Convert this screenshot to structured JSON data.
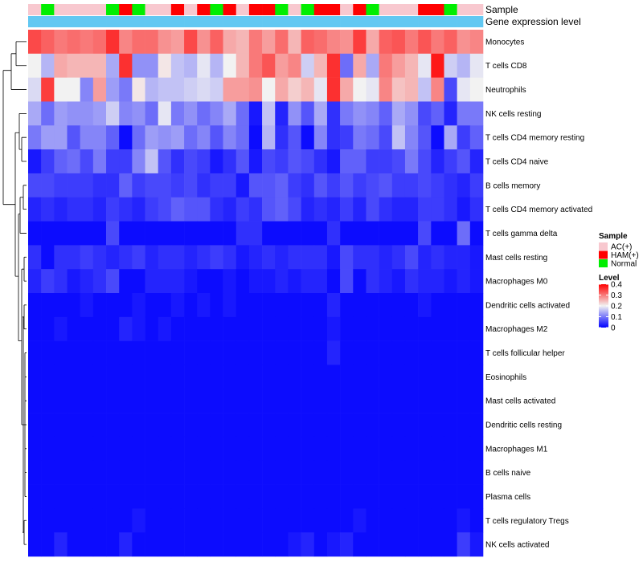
{
  "chart_data": {
    "type": "heatmap",
    "title": "",
    "annotation_labels": [
      "Sample",
      "Gene expression level"
    ],
    "rows": [
      "Monocytes",
      "T cells CD8",
      "Neutrophils",
      "NK cells resting",
      "T cells CD4 memory resting",
      "T cells CD4 naive",
      "B cells memory",
      "T cells CD4 memory activated",
      "T cells gamma delta",
      "Mast cells resting",
      "Macrophages M0",
      "Dendritic cells activated",
      "Macrophages M2",
      "T cells follicular helper",
      "Eosinophils",
      "Mast cells activated",
      "Dendritic cells resting",
      "Macrophages M1",
      "B cells naive",
      "Plasma cells",
      "T cells regulatory  Tregs",
      "NK cells activated"
    ],
    "sample_groups": [
      "A",
      "N",
      "A",
      "A",
      "A",
      "A",
      "N",
      "H",
      "N",
      "A",
      "A",
      "H",
      "A",
      "H",
      "N",
      "H",
      "A",
      "H",
      "H",
      "N",
      "A",
      "N",
      "H",
      "H",
      "A",
      "H",
      "N",
      "A",
      "A",
      "A",
      "H",
      "H",
      "N",
      "A",
      "A"
    ],
    "expression_level": [
      0.2,
      0.2,
      0.2,
      0.2,
      0.2,
      0.2,
      0.2,
      0.2,
      0.2,
      0.2,
      0.2,
      0.2,
      0.2,
      0.2,
      0.2,
      0.2,
      0.2,
      0.2,
      0.2,
      0.2,
      0.2,
      0.2,
      0.2,
      0.2,
      0.2,
      0.2,
      0.2,
      0.2,
      0.2,
      0.2,
      0.2,
      0.2,
      0.2,
      0.2,
      0.2
    ],
    "values": [
      [
        0.34,
        0.32,
        0.3,
        0.31,
        0.3,
        0.31,
        0.36,
        0.29,
        0.31,
        0.31,
        0.28,
        0.27,
        0.34,
        0.28,
        0.32,
        0.26,
        0.25,
        0.3,
        0.27,
        0.31,
        0.25,
        0.32,
        0.31,
        0.29,
        0.28,
        0.35,
        0.26,
        0.32,
        0.33,
        0.3,
        0.33,
        0.3,
        0.32,
        0.28,
        0.29
      ],
      [
        0.2,
        0.15,
        0.26,
        0.25,
        0.25,
        0.25,
        0.14,
        0.36,
        0.12,
        0.12,
        0.21,
        0.16,
        0.15,
        0.19,
        0.15,
        0.2,
        0.25,
        0.3,
        0.33,
        0.27,
        0.29,
        0.17,
        0.25,
        0.36,
        0.09,
        0.26,
        0.14,
        0.3,
        0.27,
        0.25,
        0.19,
        0.38,
        0.17,
        0.15,
        0.19
      ],
      [
        0.18,
        0.35,
        0.2,
        0.2,
        0.11,
        0.27,
        0.13,
        0.1,
        0.21,
        0.15,
        0.16,
        0.16,
        0.17,
        0.18,
        0.17,
        0.27,
        0.27,
        0.28,
        0.2,
        0.26,
        0.23,
        0.25,
        0.19,
        0.36,
        0.26,
        0.2,
        0.19,
        0.29,
        0.24,
        0.25,
        0.16,
        0.29,
        0.06,
        0.19,
        0.2
      ],
      [
        0.14,
        0.09,
        0.13,
        0.12,
        0.12,
        0.13,
        0.17,
        0.11,
        0.12,
        0.09,
        0.19,
        0.1,
        0.12,
        0.09,
        0.11,
        0.14,
        0.09,
        0.02,
        0.16,
        0.03,
        0.12,
        0.07,
        0.14,
        0.04,
        0.1,
        0.12,
        0.11,
        0.08,
        0.14,
        0.12,
        0.06,
        0.08,
        0.03,
        0.1,
        0.1
      ],
      [
        0.1,
        0.13,
        0.13,
        0.07,
        0.11,
        0.11,
        0.08,
        0.01,
        0.09,
        0.13,
        0.12,
        0.13,
        0.09,
        0.11,
        0.07,
        0.11,
        0.09,
        0.01,
        0.15,
        0.04,
        0.07,
        0.01,
        0.11,
        0.04,
        0.05,
        0.1,
        0.09,
        0.06,
        0.16,
        0.11,
        0.07,
        0.01,
        0.14,
        0.05,
        0.08
      ],
      [
        0.02,
        0.05,
        0.08,
        0.09,
        0.06,
        0.1,
        0.05,
        0.05,
        0.11,
        0.16,
        0.07,
        0.04,
        0.06,
        0.05,
        0.02,
        0.04,
        0.07,
        0.02,
        0.06,
        0.05,
        0.07,
        0.06,
        0.04,
        0.02,
        0.08,
        0.08,
        0.05,
        0.05,
        0.06,
        0.1,
        0.06,
        0.03,
        0.05,
        0.07,
        0.03
      ],
      [
        0.06,
        0.06,
        0.05,
        0.05,
        0.05,
        0.04,
        0.04,
        0.08,
        0.05,
        0.06,
        0.06,
        0.05,
        0.06,
        0.04,
        0.05,
        0.05,
        0.02,
        0.07,
        0.07,
        0.08,
        0.05,
        0.04,
        0.07,
        0.05,
        0.07,
        0.05,
        0.06,
        0.07,
        0.05,
        0.05,
        0.06,
        0.05,
        0.04,
        0.03,
        0.05
      ],
      [
        0.03,
        0.04,
        0.03,
        0.04,
        0.04,
        0.03,
        0.05,
        0.04,
        0.03,
        0.05,
        0.06,
        0.08,
        0.07,
        0.07,
        0.04,
        0.03,
        0.05,
        0.04,
        0.07,
        0.08,
        0.06,
        0.03,
        0.04,
        0.03,
        0.05,
        0.03,
        0.06,
        0.04,
        0.03,
        0.03,
        0.05,
        0.05,
        0.04,
        0.02,
        0.04
      ],
      [
        0.01,
        0.01,
        0.01,
        0.01,
        0.01,
        0.01,
        0.06,
        0.01,
        0.01,
        0.01,
        0.01,
        0.01,
        0.01,
        0.01,
        0.01,
        0.01,
        0.04,
        0.04,
        0.01,
        0.01,
        0.01,
        0.01,
        0.01,
        0.04,
        0.01,
        0.01,
        0.01,
        0.01,
        0.01,
        0.01,
        0.06,
        0.01,
        0.01,
        0.09,
        0.01
      ],
      [
        0.04,
        0.01,
        0.04,
        0.04,
        0.05,
        0.04,
        0.03,
        0.04,
        0.05,
        0.03,
        0.04,
        0.04,
        0.03,
        0.04,
        0.05,
        0.04,
        0.02,
        0.03,
        0.04,
        0.03,
        0.04,
        0.04,
        0.04,
        0.02,
        0.06,
        0.04,
        0.04,
        0.03,
        0.04,
        0.06,
        0.03,
        0.04,
        0.03,
        0.03,
        0.02
      ],
      [
        0.03,
        0.05,
        0.04,
        0.02,
        0.03,
        0.04,
        0.06,
        0.01,
        0.01,
        0.03,
        0.03,
        0.03,
        0.02,
        0.01,
        0.01,
        0.02,
        0.01,
        0.02,
        0.02,
        0.03,
        0.02,
        0.03,
        0.03,
        0.01,
        0.06,
        0.01,
        0.04,
        0.03,
        0.02,
        0.04,
        0.03,
        0.03,
        0.02,
        0.03,
        0.02
      ],
      [
        0.01,
        0.01,
        0.01,
        0.01,
        0.02,
        0.01,
        0.01,
        0.01,
        0.02,
        0.01,
        0.01,
        0.02,
        0.01,
        0.02,
        0.01,
        0.02,
        0.01,
        0.01,
        0.01,
        0.01,
        0.01,
        0.01,
        0.01,
        0.03,
        0.01,
        0.01,
        0.01,
        0.01,
        0.01,
        0.01,
        0.02,
        0.01,
        0.01,
        0.01,
        0.01
      ],
      [
        0.01,
        0.01,
        0.02,
        0.01,
        0.01,
        0.01,
        0.01,
        0.03,
        0.02,
        0.01,
        0.02,
        0.01,
        0.01,
        0.01,
        0.01,
        0.01,
        0.01,
        0.01,
        0.01,
        0.01,
        0.01,
        0.01,
        0.01,
        0.02,
        0.01,
        0.01,
        0.01,
        0.01,
        0.01,
        0.01,
        0.01,
        0.01,
        0.01,
        0.01,
        0.01
      ],
      [
        0.01,
        0.01,
        0.01,
        0.01,
        0.01,
        0.01,
        0.01,
        0.01,
        0.01,
        0.01,
        0.01,
        0.01,
        0.01,
        0.01,
        0.01,
        0.01,
        0.01,
        0.01,
        0.01,
        0.01,
        0.01,
        0.01,
        0.01,
        0.03,
        0.01,
        0.01,
        0.01,
        0.01,
        0.01,
        0.01,
        0.01,
        0.01,
        0.01,
        0.01,
        0.01
      ],
      [
        0.01,
        0.01,
        0.01,
        0.01,
        0.01,
        0.01,
        0.01,
        0.01,
        0.01,
        0.01,
        0.01,
        0.01,
        0.01,
        0.01,
        0.01,
        0.01,
        0.01,
        0.01,
        0.01,
        0.01,
        0.01,
        0.01,
        0.01,
        0.01,
        0.01,
        0.01,
        0.01,
        0.01,
        0.01,
        0.01,
        0.01,
        0.01,
        0.01,
        0.01,
        0.01
      ],
      [
        0.01,
        0.01,
        0.01,
        0.01,
        0.01,
        0.01,
        0.01,
        0.01,
        0.01,
        0.01,
        0.01,
        0.01,
        0.01,
        0.01,
        0.01,
        0.01,
        0.01,
        0.01,
        0.01,
        0.01,
        0.01,
        0.01,
        0.01,
        0.01,
        0.01,
        0.01,
        0.01,
        0.01,
        0.01,
        0.01,
        0.01,
        0.01,
        0.01,
        0.01,
        0.01
      ],
      [
        0.01,
        0.01,
        0.01,
        0.01,
        0.01,
        0.01,
        0.01,
        0.01,
        0.01,
        0.01,
        0.01,
        0.01,
        0.01,
        0.01,
        0.01,
        0.01,
        0.01,
        0.01,
        0.01,
        0.01,
        0.01,
        0.01,
        0.01,
        0.01,
        0.01,
        0.01,
        0.01,
        0.01,
        0.01,
        0.01,
        0.01,
        0.01,
        0.01,
        0.01,
        0.01
      ],
      [
        0.01,
        0.01,
        0.01,
        0.01,
        0.01,
        0.01,
        0.01,
        0.01,
        0.01,
        0.01,
        0.01,
        0.01,
        0.01,
        0.01,
        0.01,
        0.01,
        0.01,
        0.01,
        0.01,
        0.01,
        0.01,
        0.01,
        0.01,
        0.01,
        0.01,
        0.01,
        0.01,
        0.01,
        0.01,
        0.01,
        0.01,
        0.01,
        0.01,
        0.01,
        0.01
      ],
      [
        0.01,
        0.01,
        0.01,
        0.01,
        0.01,
        0.01,
        0.01,
        0.01,
        0.01,
        0.01,
        0.01,
        0.01,
        0.01,
        0.01,
        0.01,
        0.01,
        0.01,
        0.01,
        0.01,
        0.01,
        0.01,
        0.01,
        0.01,
        0.01,
        0.01,
        0.01,
        0.01,
        0.01,
        0.01,
        0.01,
        0.01,
        0.01,
        0.01,
        0.01,
        0.01
      ],
      [
        0.01,
        0.01,
        0.01,
        0.01,
        0.01,
        0.01,
        0.01,
        0.01,
        0.01,
        0.01,
        0.01,
        0.01,
        0.01,
        0.01,
        0.01,
        0.01,
        0.01,
        0.01,
        0.01,
        0.01,
        0.01,
        0.01,
        0.01,
        0.01,
        0.01,
        0.01,
        0.01,
        0.01,
        0.01,
        0.01,
        0.01,
        0.01,
        0.01,
        0.01,
        0.01
      ],
      [
        0.01,
        0.01,
        0.01,
        0.01,
        0.01,
        0.01,
        0.01,
        0.01,
        0.02,
        0.01,
        0.01,
        0.01,
        0.01,
        0.01,
        0.01,
        0.01,
        0.01,
        0.01,
        0.01,
        0.01,
        0.01,
        0.01,
        0.01,
        0.01,
        0.01,
        0.02,
        0.01,
        0.01,
        0.01,
        0.01,
        0.01,
        0.01,
        0.01,
        0.02,
        0.01
      ],
      [
        0.01,
        0.01,
        0.03,
        0.01,
        0.01,
        0.01,
        0.01,
        0.03,
        0.01,
        0.01,
        0.01,
        0.01,
        0.01,
        0.01,
        0.01,
        0.01,
        0.01,
        0.01,
        0.01,
        0.01,
        0.02,
        0.03,
        0.01,
        0.02,
        0.03,
        0.01,
        0.01,
        0.01,
        0.01,
        0.01,
        0.01,
        0.01,
        0.01,
        0.05,
        0.02
      ]
    ],
    "color_scale": {
      "min": 0,
      "mid": 0.2,
      "max": 0.4,
      "low": "#0000ff",
      "midColor": "#f2f2f2",
      "high": "#ff0000"
    },
    "legend": {
      "position": "right",
      "sample_title": "Sample",
      "sample_items": [
        {
          "key": "A",
          "label": "AC(+)",
          "color": "#f8c8cf"
        },
        {
          "key": "H",
          "label": "HAM(+)",
          "color": "#ff0000"
        },
        {
          "key": "N",
          "label": "Normal",
          "color": "#00ee00"
        }
      ],
      "level_title": "Level",
      "level_ticks": [
        "0.4",
        "0.3",
        "0.2",
        "0.1",
        "0"
      ],
      "level_tick_values": [
        0.4,
        0.3,
        0.2,
        0.1,
        0
      ]
    },
    "expression_color": "#62c8f2"
  }
}
